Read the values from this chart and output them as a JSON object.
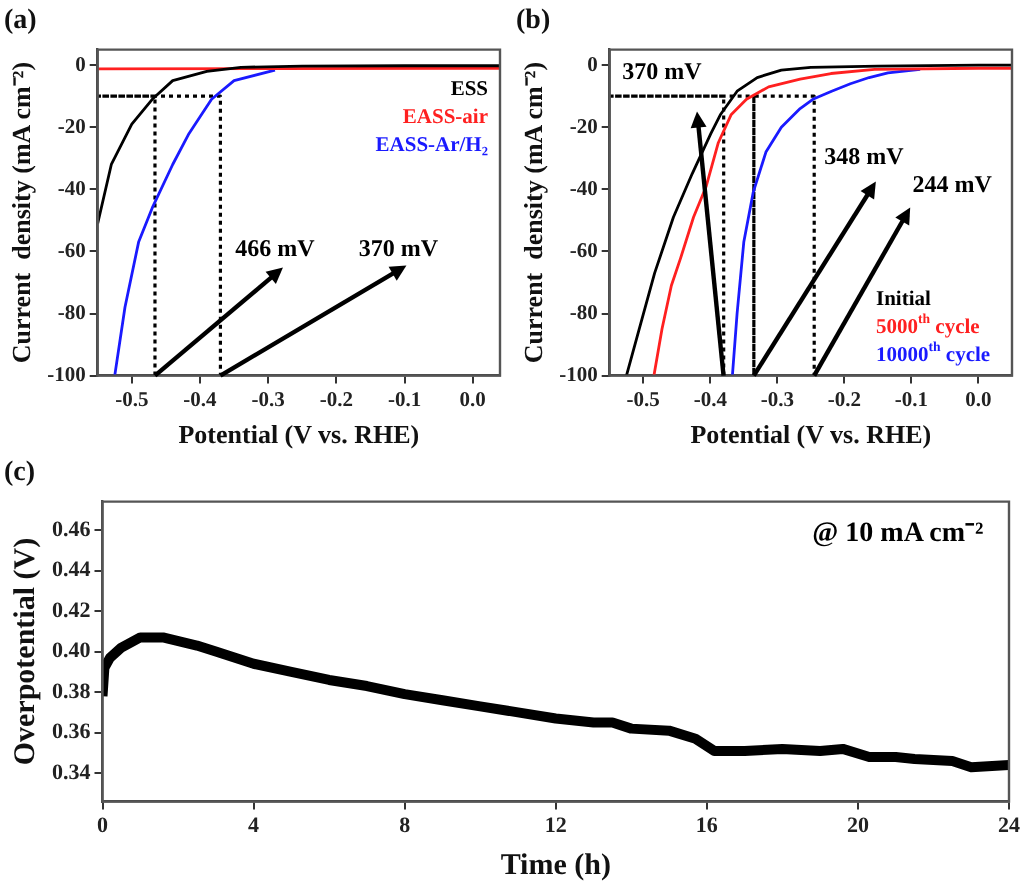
{
  "chart_data": [
    {
      "type": "line",
      "title": "(a)",
      "xlabel": "Potential (V vs. RHE)",
      "ylabel": "Current  density (mA cm⁻²)",
      "xlim": [
        -0.55,
        0.04
      ],
      "ylim": [
        -100,
        5
      ],
      "xticks": [
        -0.5,
        -0.4,
        -0.3,
        -0.2,
        -0.1,
        {
          "value": 0,
          "label": "0.0"
        }
      ],
      "yticks": [
        -100,
        -80,
        -60,
        -40,
        -20,
        0
      ],
      "legend": "top right",
      "grid": false,
      "series": [
        {
          "name": "ESS",
          "color": "#000000",
          "x": [
            -0.55,
            -0.53,
            -0.5,
            -0.47,
            -0.44,
            -0.39,
            -0.34,
            -0.25,
            -0.1,
            0.0,
            0.04
          ],
          "values": [
            -51,
            -32,
            -19,
            -11,
            -5,
            -2,
            -0.7,
            -0.3,
            -0.2,
            -0.2,
            -0.2
          ]
        },
        {
          "name": "EASS-air",
          "color": "#ff2020",
          "x": [
            -0.55,
            -0.3,
            0.0,
            0.04
          ],
          "values": [
            -1.2,
            -1.1,
            -1,
            -1
          ]
        },
        {
          "name": "EASS-Ar/H₂",
          "color": "#1a1aff",
          "x": [
            -0.525,
            -0.51,
            -0.49,
            -0.47,
            -0.44,
            -0.416,
            -0.383,
            -0.35,
            -0.29
          ],
          "values": [
            -100,
            -78,
            -57,
            -46,
            -32,
            -22,
            -11,
            -5,
            -1.6
          ]
        },
        {
          "color": "#000000",
          "line_style": "dotted",
          "x": [
            -0.466,
            -0.466,
            -0.55,
            -0.37,
            -0.37
          ],
          "values": [
            -100,
            -10,
            -10,
            -10,
            -100
          ]
        }
      ],
      "annotations": [
        {
          "text": "466 mV",
          "x": -0.466,
          "y": -100
        },
        {
          "text": "370 mV",
          "x": -0.37,
          "y": -100
        }
      ]
    },
    {
      "type": "line",
      "title": "(b)",
      "xlabel": "Potential (V vs. RHE)",
      "ylabel": "Current  density (mA cm⁻²)",
      "xlim": [
        -0.55,
        0.05
      ],
      "ylim": [
        -100,
        5
      ],
      "xticks": [
        -0.5,
        -0.4,
        -0.3,
        -0.2,
        -0.1,
        {
          "value": 0,
          "label": "0.0"
        }
      ],
      "yticks": [
        -100,
        -80,
        -60,
        -40,
        -20,
        0
      ],
      "legend": "bottom right",
      "grid": false,
      "series": [
        {
          "name": "Initial",
          "color": "#000000",
          "x": [
            -0.525,
            -0.506,
            -0.483,
            -0.455,
            -0.427,
            -0.399,
            -0.385,
            -0.36,
            -0.33,
            -0.294,
            -0.25,
            -0.15,
            0.0,
            0.05
          ],
          "values": [
            -100,
            -85,
            -67,
            -49,
            -35,
            -22,
            -16,
            -8.4,
            -4,
            -1.6,
            -0.7,
            -0.3,
            0,
            0
          ]
        },
        {
          "name": "5000$^{th}$ cycle",
          "color": "#ff2020",
          "x": [
            -0.484,
            -0.472,
            -0.458,
            -0.444,
            -0.425,
            -0.406,
            -0.388,
            -0.369,
            -0.346,
            -0.313,
            -0.266,
            -0.22,
            -0.155,
            0.0,
            0.05
          ],
          "values": [
            -100,
            -85,
            -71,
            -62,
            -49,
            -39,
            -25,
            -16,
            -11,
            -7,
            -4.5,
            -2.7,
            -1.4,
            -1,
            -1
          ]
        },
        {
          "name": "10000$^{th}$ cycle",
          "color": "#1a1aff",
          "x": [
            -0.367,
            -0.36,
            -0.35,
            -0.336,
            -0.317,
            -0.294,
            -0.266,
            -0.247,
            -0.219,
            -0.191,
            -0.163,
            -0.135,
            -0.087
          ],
          "values": [
            -100,
            -80,
            -57,
            -41,
            -28,
            -20,
            -14,
            -11,
            -8.4,
            -6,
            -4,
            -2.5,
            -1.4
          ]
        },
        {
          "color": "#000000",
          "line_style": "dotted",
          "x": [
            -0.38,
            -0.38,
            -0.549,
            -0.335,
            -0.335,
            -0.335,
            -0.245,
            -0.245
          ],
          "values": [
            -100,
            -10,
            -10,
            -10,
            -100,
            -10,
            -10,
            -100
          ]
        }
      ],
      "annotations": [
        "370 mV",
        {
          "text": "348 mV",
          "x": -0.335,
          "y": -100
        },
        {
          "text": "244 mV",
          "x": -0.245,
          "y": -100
        }
      ]
    },
    {
      "type": "line",
      "title": "(c)",
      "xlabel": "Time (h)",
      "ylabel": "Overpotential (V)",
      "xlim": [
        0,
        24
      ],
      "ylim": [
        0.326,
        0.474
      ],
      "xticks": [
        0,
        4,
        8,
        12,
        16,
        20,
        24
      ],
      "yticks": [
        0.34,
        0.36,
        0.38,
        {
          "value": 0.4,
          "label": "0.40"
        },
        0.42,
        0.44,
        0.46
      ],
      "grid": false,
      "series": [
        {
          "color": "#000000",
          "x": [
            0,
            0.05,
            0.2,
            0.5,
            1,
            1.6,
            2.5,
            3,
            4,
            5,
            6,
            7,
            8,
            9,
            10,
            11,
            12,
            13,
            13.5,
            14,
            15,
            15.7,
            16.2,
            17,
            18,
            19,
            19.6,
            20.3,
            21,
            21.5,
            22.5,
            23,
            24
          ],
          "values": [
            0.378,
            0.392,
            0.397,
            0.402,
            0.407,
            0.407,
            0.403,
            0.4,
            0.394,
            0.39,
            0.386,
            0.383,
            0.379,
            0.376,
            0.373,
            0.37,
            0.367,
            0.365,
            0.365,
            0.362,
            0.361,
            0.357,
            0.351,
            0.351,
            0.352,
            0.351,
            0.352,
            0.348,
            0.348,
            0.347,
            0.346,
            0.343,
            0.344
          ]
        }
      ],
      "annotations": [
        "@ 10 mA cm⁻²"
      ]
    }
  ]
}
